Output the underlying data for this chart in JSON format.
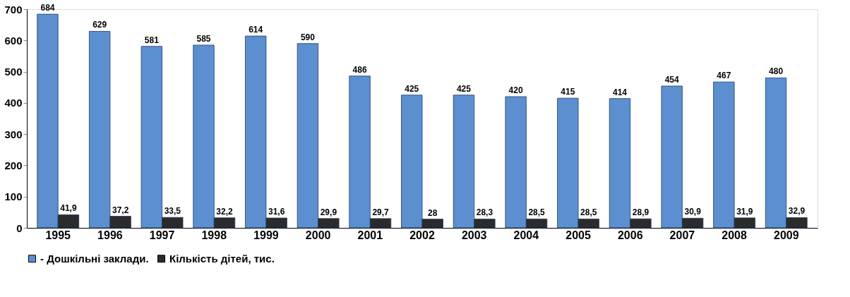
{
  "chart_data": {
    "type": "bar",
    "categories": [
      "1995",
      "1996",
      "1997",
      "1998",
      "1999",
      "2000",
      "2001",
      "2002",
      "2003",
      "2004",
      "2005",
      "2006",
      "2007",
      "2008",
      "2009"
    ],
    "series": [
      {
        "name": "- Дошкільні заклади.",
        "color": "#5b8fd0",
        "values": [
          684,
          629,
          581,
          585,
          614,
          590,
          486,
          425,
          425,
          420,
          415,
          414,
          454,
          467,
          480
        ],
        "value_labels": [
          "684",
          "629",
          "581",
          "585",
          "614",
          "590",
          "486",
          "425",
          "425",
          "420",
          "415",
          "414",
          "454",
          "467",
          "480"
        ]
      },
      {
        "name": "Кількість дітей, тис.",
        "color": "#2b2b2b",
        "values": [
          41.9,
          37.2,
          33.5,
          32.2,
          31.6,
          29.9,
          29.7,
          28,
          28.3,
          28.5,
          28.5,
          28.9,
          30.9,
          31.9,
          32.9
        ],
        "value_labels": [
          "41,9",
          "37,2",
          "33,5",
          "32,2",
          "31,6",
          "29,9",
          "29,7",
          "28",
          "28,3",
          "28,5",
          "28,5",
          "28,9",
          "30,9",
          "31,9",
          "32,9"
        ]
      }
    ],
    "ylim": [
      0,
      700
    ],
    "yticks": [
      0,
      100,
      200,
      300,
      400,
      500,
      600,
      700
    ],
    "grid": false,
    "legend": "bottom"
  }
}
